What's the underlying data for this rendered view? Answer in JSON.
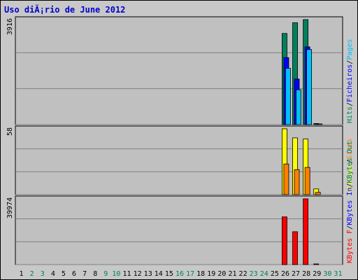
{
  "title": "Uso diÃ¡rio de June 2012",
  "chart_data": {
    "type": "bar",
    "title": "Uso diÃ¡rio de June 2012",
    "days": [
      {
        "label": "1",
        "weekend": false
      },
      {
        "label": "2",
        "weekend": true
      },
      {
        "label": "3",
        "weekend": true
      },
      {
        "label": "4",
        "weekend": false
      },
      {
        "label": "5",
        "weekend": false
      },
      {
        "label": "6",
        "weekend": false
      },
      {
        "label": "7",
        "weekend": false
      },
      {
        "label": "8",
        "weekend": false
      },
      {
        "label": "9",
        "weekend": true
      },
      {
        "label": "10",
        "weekend": true
      },
      {
        "label": "11",
        "weekend": false
      },
      {
        "label": "12",
        "weekend": false
      },
      {
        "label": "13",
        "weekend": false
      },
      {
        "label": "14",
        "weekend": false
      },
      {
        "label": "15",
        "weekend": false
      },
      {
        "label": "16",
        "weekend": true
      },
      {
        "label": "17",
        "weekend": true
      },
      {
        "label": "18",
        "weekend": false
      },
      {
        "label": "19",
        "weekend": false
      },
      {
        "label": "20",
        "weekend": false
      },
      {
        "label": "21",
        "weekend": false
      },
      {
        "label": "22",
        "weekend": false
      },
      {
        "label": "23",
        "weekend": true
      },
      {
        "label": "24",
        "weekend": true
      },
      {
        "label": "25",
        "weekend": false
      },
      {
        "label": "26",
        "weekend": false
      },
      {
        "label": "27",
        "weekend": false
      },
      {
        "label": "28",
        "weekend": false
      },
      {
        "label": "29",
        "weekend": false
      },
      {
        "label": "30",
        "weekend": true
      },
      {
        "label": "31",
        "weekend": true
      }
    ],
    "weekday_color": "#000000",
    "weekend_color": "#00805c",
    "panels": [
      {
        "id": "hits",
        "max_label": "3916",
        "ymax": 3916,
        "legend": [
          {
            "text": "Hits",
            "color": "#00805c"
          },
          {
            "text": "/",
            "color": "#000000"
          },
          {
            "text": "Ficheiros",
            "color": "#0000ff"
          },
          {
            "text": "/",
            "color": "#000000"
          },
          {
            "text": "Pages",
            "color": "#00c0ff"
          }
        ],
        "series": [
          {
            "name": "Hits",
            "color": "#00805c",
            "values": [
              0,
              0,
              0,
              0,
              0,
              0,
              0,
              0,
              0,
              0,
              0,
              0,
              0,
              0,
              0,
              0,
              0,
              0,
              0,
              0,
              0,
              0,
              0,
              0,
              0,
              3400,
              3800,
              3916,
              40,
              0,
              0
            ]
          },
          {
            "name": "Ficheiros",
            "color": "#0000ff",
            "values": [
              0,
              0,
              0,
              0,
              0,
              0,
              0,
              0,
              0,
              0,
              0,
              0,
              0,
              0,
              0,
              0,
              0,
              0,
              0,
              0,
              0,
              0,
              0,
              0,
              0,
              2500,
              1700,
              2900,
              20,
              0,
              0
            ]
          },
          {
            "name": "Pages",
            "color": "#00c0ff",
            "values": [
              0,
              0,
              0,
              0,
              0,
              0,
              0,
              0,
              0,
              0,
              0,
              0,
              0,
              0,
              0,
              0,
              0,
              0,
              0,
              0,
              0,
              0,
              0,
              0,
              0,
              2100,
              1300,
              2800,
              10,
              0,
              0
            ]
          }
        ]
      },
      {
        "id": "visits",
        "max_label": "58",
        "ymax": 58,
        "legend": [
          {
            "text": "Visitas",
            "color": "#ffff00"
          },
          {
            "text": "/",
            "color": "#000000"
          },
          {
            "text": "Sites",
            "color": "#ff8000"
          }
        ],
        "series": [
          {
            "name": "Visitas",
            "color": "#ffff00",
            "values": [
              0,
              0,
              0,
              0,
              0,
              0,
              0,
              0,
              0,
              0,
              0,
              0,
              0,
              0,
              0,
              0,
              0,
              0,
              0,
              0,
              0,
              0,
              0,
              0,
              0,
              58,
              50,
              49,
              5,
              0,
              0
            ]
          },
          {
            "name": "Sites",
            "color": "#ff8000",
            "values": [
              0,
              0,
              0,
              0,
              0,
              0,
              0,
              0,
              0,
              0,
              0,
              0,
              0,
              0,
              0,
              0,
              0,
              0,
              0,
              0,
              0,
              0,
              0,
              0,
              0,
              27,
              22,
              24,
              2,
              0,
              0
            ]
          }
        ]
      },
      {
        "id": "kbytes",
        "max_label": "39974",
        "ymax": 39974,
        "legend": [
          {
            "text": "KBytes F",
            "color": "#ff0000"
          },
          {
            "text": "/",
            "color": "#000000"
          },
          {
            "text": "KBytes In",
            "color": "#0000ff"
          },
          {
            "text": "/",
            "color": "#000000"
          },
          {
            "text": "KBytes Out",
            "color": "#00805c"
          }
        ],
        "series": [
          {
            "name": "KBytes F",
            "color": "#ff0000",
            "values": [
              0,
              0,
              0,
              0,
              0,
              0,
              0,
              0,
              0,
              0,
              0,
              0,
              0,
              0,
              0,
              0,
              0,
              0,
              0,
              0,
              0,
              0,
              0,
              0,
              0,
              29000,
              20000,
              39974,
              300,
              0,
              0
            ]
          }
        ]
      }
    ]
  }
}
